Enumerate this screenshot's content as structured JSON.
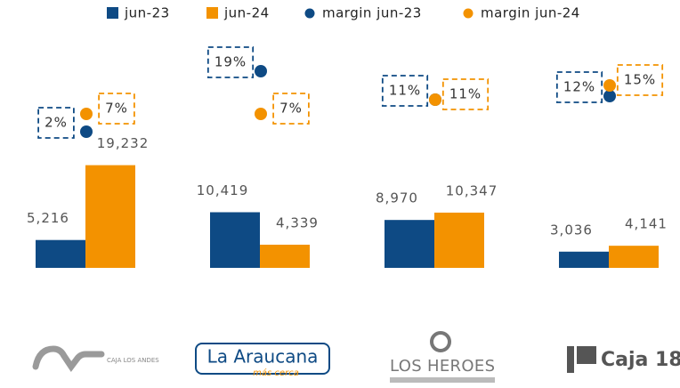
{
  "chart_data": {
    "type": "bar",
    "categories": [
      "CAJA LOS ANDES",
      "La Araucana",
      "LOS HEROES",
      "Caja 18"
    ],
    "category_taglines": [
      null,
      "más cerca",
      null,
      null
    ],
    "series": [
      {
        "name": "jun-23",
        "type": "bar",
        "color": "#0e4a84",
        "values": [
          5216,
          10419,
          8970,
          3036
        ],
        "value_labels": [
          "5,216",
          "10,419",
          "8,970",
          "3,036"
        ]
      },
      {
        "name": "jun-24",
        "type": "bar",
        "color": "#f39200",
        "values": [
          19232,
          4339,
          10347,
          4141
        ],
        "value_labels": [
          "19,232",
          "4,339",
          "10,347",
          "4,141"
        ]
      },
      {
        "name": "margin jun-23",
        "type": "dot",
        "axis": "y2",
        "color": "#0e4a84",
        "values": [
          2,
          19,
          11,
          12
        ],
        "value_labels": [
          "2%",
          "19%",
          "11%",
          "12%"
        ]
      },
      {
        "name": "margin jun-24",
        "type": "dot",
        "axis": "y2",
        "color": "#f39200",
        "values": [
          7,
          7,
          11,
          15
        ],
        "value_labels": [
          "7%",
          "7%",
          "11%",
          "15%"
        ]
      }
    ],
    "ylim": [
      0,
      20000
    ],
    "y2lim": [
      0,
      25
    ],
    "grid": false
  }
}
